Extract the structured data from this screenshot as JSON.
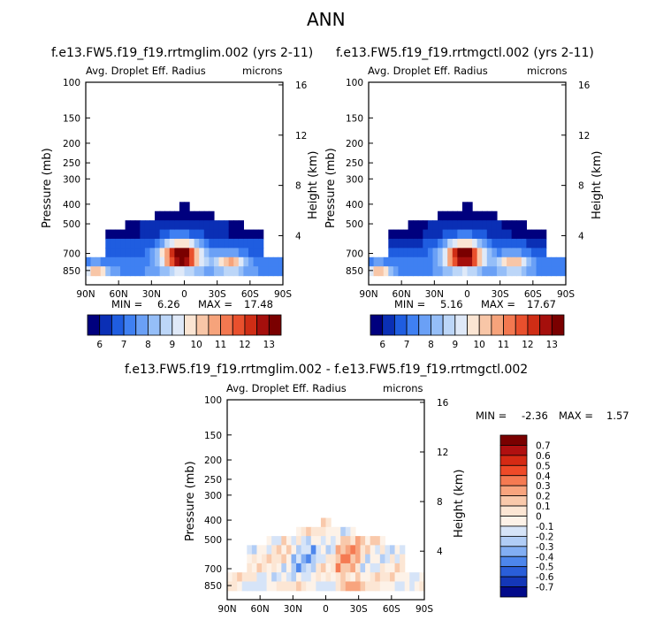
{
  "figure": {
    "title": "ANN"
  },
  "chart_data": [
    {
      "type": "heatmap",
      "title": "f.e13.FW5.f19_f19.rrtmglim.002 (yrs 2-11)",
      "field_label": "Avg. Droplet Eff. Radius",
      "units": "microns",
      "ylabel": "Pressure (mb)",
      "y2label": "Height (km)",
      "x_ticks": [
        "90N",
        "60N",
        "30N",
        "0",
        "30S",
        "60S",
        "90S"
      ],
      "y_ticks": [
        "100",
        "150",
        "200",
        "250",
        "300",
        "400",
        "500",
        "700",
        "850"
      ],
      "y2_ticks": [
        "16",
        "12",
        "8",
        "4"
      ],
      "stats": {
        "min_label": "MIN =",
        "min": "6.26",
        "max_label": "MAX =",
        "max": "17.48"
      },
      "colorbar_labels": [
        "6",
        "7",
        "8",
        "9",
        "10",
        "11",
        "12",
        "13"
      ],
      "colors": [
        "#00007e",
        "#0a2fb5",
        "#1f5de0",
        "#3f80f2",
        "#6aa0f6",
        "#95bef8",
        "#bcd6f8",
        "#dfe9f8",
        "#fbe5d3",
        "#f8c6a7",
        "#f6a37b",
        "#f37850",
        "#e9502d",
        "#cf2d15",
        "#a50f0c",
        "#7a0000"
      ],
      "vmin": 5.5,
      "vmax": 13.5
    },
    {
      "type": "heatmap",
      "title": "f.e13.FW5.f19_f19.rrtmgctl.002 (yrs 2-11)",
      "field_label": "Avg. Droplet Eff. Radius",
      "units": "microns",
      "ylabel": "Pressure (mb)",
      "y2label": "Height (km)",
      "x_ticks": [
        "90N",
        "60N",
        "30N",
        "0",
        "30S",
        "60S",
        "90S"
      ],
      "y_ticks": [
        "100",
        "150",
        "200",
        "250",
        "300",
        "400",
        "500",
        "700",
        "850"
      ],
      "y2_ticks": [
        "16",
        "12",
        "8",
        "4"
      ],
      "stats": {
        "min_label": "MIN =",
        "min": "5.16",
        "max_label": "MAX =",
        "max": "17.67"
      },
      "colorbar_labels": [
        "6",
        "7",
        "8",
        "9",
        "10",
        "11",
        "12",
        "13"
      ],
      "colors": [
        "#00007e",
        "#0a2fb5",
        "#1f5de0",
        "#3f80f2",
        "#6aa0f6",
        "#95bef8",
        "#bcd6f8",
        "#dfe9f8",
        "#fbe5d3",
        "#f8c6a7",
        "#f6a37b",
        "#f37850",
        "#e9502d",
        "#cf2d15",
        "#a50f0c",
        "#7a0000"
      ],
      "vmin": 5.5,
      "vmax": 13.5
    },
    {
      "type": "heatmap",
      "title": "f.e13.FW5.f19_f19.rrtmglim.002 - f.e13.FW5.f19_f19.rrtmgctl.002",
      "field_label": "Avg. Droplet Eff. Radius",
      "units": "microns",
      "ylabel": "Pressure (mb)",
      "y2label": "Height (km)",
      "x_ticks": [
        "90N",
        "60N",
        "30N",
        "0",
        "30S",
        "60S",
        "90S"
      ],
      "y_ticks": [
        "100",
        "150",
        "200",
        "250",
        "300",
        "400",
        "500",
        "700",
        "850"
      ],
      "y2_ticks": [
        "16",
        "12",
        "8",
        "4"
      ],
      "stats": {
        "min_label": "MIN =",
        "min": "-2.36",
        "max_label": "MAX =",
        "max": "1.57"
      },
      "colorbar_labels": [
        "0.7",
        "0.6",
        "0.5",
        "0.4",
        "0.3",
        "0.2",
        "0.1",
        "0",
        "-0.1",
        "-0.2",
        "-0.3",
        "-0.4",
        "-0.5",
        "-0.6",
        "-0.7"
      ],
      "colors": [
        "#7a0000",
        "#b01010",
        "#d52a14",
        "#ef4a28",
        "#f57a52",
        "#f8a47e",
        "#f9c9ab",
        "#fce6d4",
        "#fdf2e8",
        "#d6e4f8",
        "#b1cdf6",
        "#82aef3",
        "#4d86ec",
        "#2a5ed9",
        "#1437b8",
        "#020a8a"
      ],
      "vmin": -0.8,
      "vmax": 0.8
    }
  ]
}
